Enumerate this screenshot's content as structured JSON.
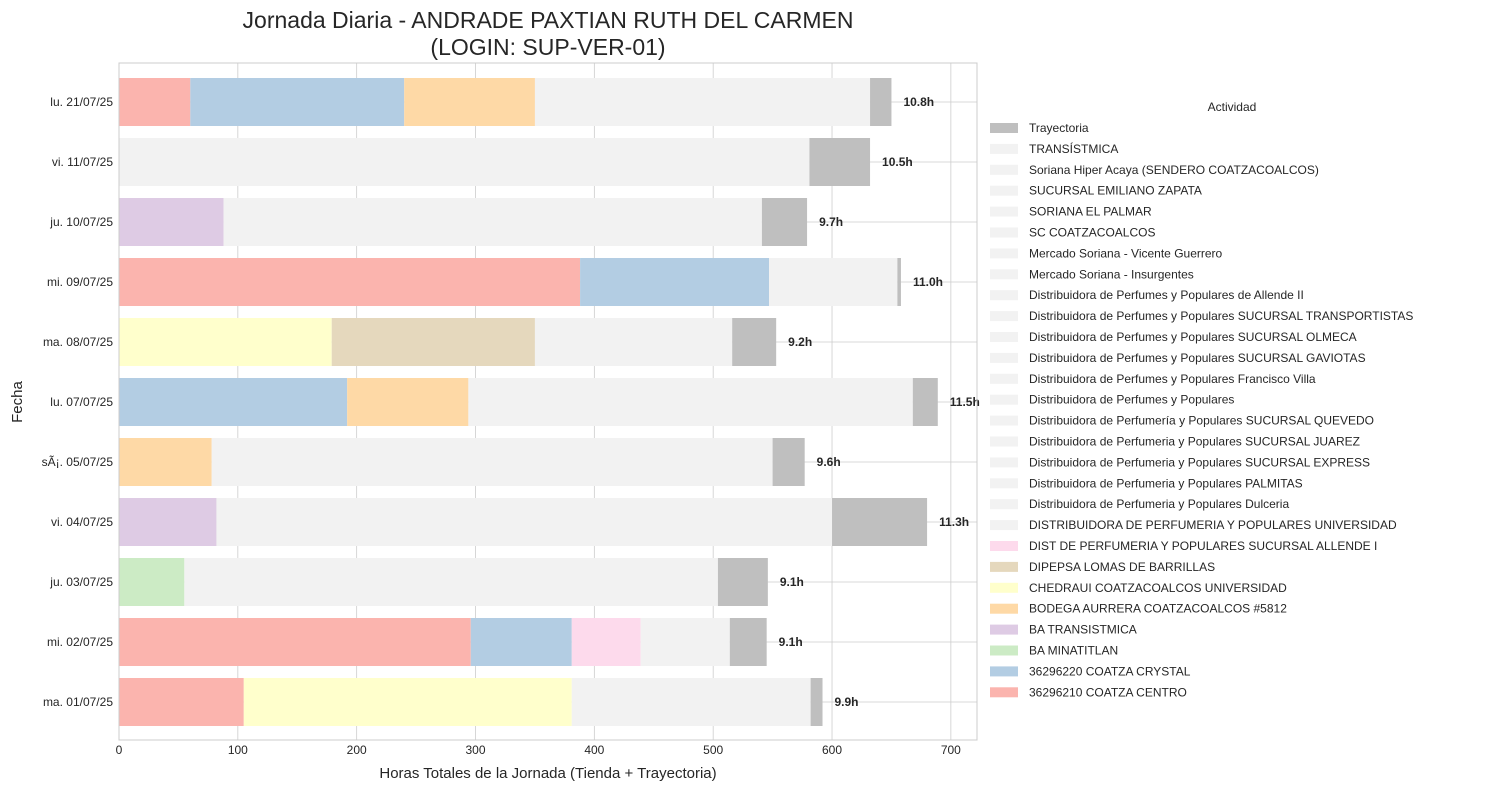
{
  "chart_data": {
    "type": "bar",
    "orientation": "horizontal",
    "stacked": true,
    "title_line1": "Jornada Diaria - ANDRADE PAXTIAN RUTH DEL CARMEN",
    "title_line2": "(LOGIN: SUP-VER-01)",
    "xlabel": "Horas Totales de la Jornada (Tienda + Trayectoria)",
    "ylabel": "Fecha",
    "xlim": [
      0,
      722
    ],
    "xticks": [
      0,
      100,
      200,
      300,
      400,
      500,
      600,
      700
    ],
    "grid": true,
    "legend_title": "Actividad",
    "legend_placement": "right",
    "categories": [
      "lu. 21/07/25",
      "vi. 11/07/25",
      "ju. 10/07/25",
      "mi. 09/07/25",
      "ma. 08/07/25",
      "lu. 07/07/25",
      "sÃ¡. 05/07/25",
      "vi. 04/07/25",
      "ju. 03/07/25",
      "mi. 02/07/25",
      "ma. 01/07/25"
    ],
    "total_labels": [
      "10.8h",
      "10.5h",
      "9.7h",
      "11.0h",
      "9.2h",
      "11.5h",
      "9.6h",
      "11.3h",
      "9.1h",
      "9.1h",
      "9.9h"
    ],
    "legend_items": [
      {
        "name": "Trayectoria",
        "color": "#bfbfbf"
      },
      {
        "name": "TRANSÍSTMICA",
        "color": "#f2f2f2"
      },
      {
        "name": "Soriana Hiper Acaya (SENDERO COATZACOALCOS)",
        "color": "#f2f2f2"
      },
      {
        "name": "SUCURSAL EMILIANO ZAPATA",
        "color": "#f2f2f2"
      },
      {
        "name": "SORIANA EL PALMAR",
        "color": "#f2f2f2"
      },
      {
        "name": "SC COATZACOALCOS",
        "color": "#f2f2f2"
      },
      {
        "name": "Mercado Soriana - Vicente Guerrero",
        "color": "#f2f2f2"
      },
      {
        "name": "Mercado Soriana - Insurgentes",
        "color": "#f2f2f2"
      },
      {
        "name": "Distribuidora de Perfumes y Populares de Allende II",
        "color": "#f2f2f2"
      },
      {
        "name": "Distribuidora de Perfumes y Populares SUCURSAL TRANSPORTISTAS",
        "color": "#f2f2f2"
      },
      {
        "name": "Distribuidora de Perfumes y Populares SUCURSAL OLMECA",
        "color": "#f2f2f2"
      },
      {
        "name": "Distribuidora de Perfumes y Populares SUCURSAL GAVIOTAS",
        "color": "#f2f2f2"
      },
      {
        "name": "Distribuidora de Perfumes y Populares Francisco Villa",
        "color": "#f2f2f2"
      },
      {
        "name": "Distribuidora de Perfumes y Populares",
        "color": "#f2f2f2"
      },
      {
        "name": "Distribuidora de Perfumería y Populares SUCURSAL QUEVEDO",
        "color": "#f2f2f2"
      },
      {
        "name": "Distribuidora de Perfumeria y Populares SUCURSAL JUAREZ",
        "color": "#f2f2f2"
      },
      {
        "name": "Distribuidora de Perfumeria y Populares SUCURSAL EXPRESS",
        "color": "#f2f2f2"
      },
      {
        "name": "Distribuidora de Perfumeria y Populares PALMITAS",
        "color": "#f2f2f2"
      },
      {
        "name": "Distribuidora de Perfumeria y Populares Dulceria",
        "color": "#f2f2f2"
      },
      {
        "name": "DISTRIBUIDORA DE PERFUMERIA Y POPULARES UNIVERSIDAD",
        "color": "#f2f2f2"
      },
      {
        "name": "DIST DE PERFUMERIA Y POPULARES SUCURSAL ALLENDE I",
        "color": "#fddaec"
      },
      {
        "name": "DIPEPSA LOMAS DE BARRILLAS",
        "color": "#e5d8bd"
      },
      {
        "name": "CHEDRAUI COATZACOALCOS UNIVERSIDAD",
        "color": "#ffffcc"
      },
      {
        "name": "BODEGA AURRERA COATZACOALCOS #5812",
        "color": "#fed9a6"
      },
      {
        "name": "BA TRANSISTMICA",
        "color": "#decbe4"
      },
      {
        "name": "BA MINATITLAN",
        "color": "#ccebc5"
      },
      {
        "name": "36296220 COATZA CRYSTAL",
        "color": "#b3cde3"
      },
      {
        "name": "36296210 COATZA CENTRO",
        "color": "#fbb4ae"
      }
    ],
    "bars": [
      {
        "date": "lu. 21/07/25",
        "segments": [
          {
            "activity": "36296210 COATZA CENTRO",
            "value": 60
          },
          {
            "activity": "36296220 COATZA CRYSTAL",
            "value": 180
          },
          {
            "activity": "BODEGA AURRERA COATZACOALCOS #5812",
            "value": 110
          },
          {
            "activity": "Distribuidora de Perfumes y Populares",
            "value": 282
          },
          {
            "activity": "Trayectoria",
            "value": 18
          }
        ]
      },
      {
        "date": "vi. 11/07/25",
        "segments": [
          {
            "activity": "Distribuidora de Perfumes y Populares",
            "value": 581
          },
          {
            "activity": "Trayectoria",
            "value": 51
          }
        ]
      },
      {
        "date": "ju. 10/07/25",
        "segments": [
          {
            "activity": "BA TRANSISTMICA",
            "value": 88
          },
          {
            "activity": "Distribuidora de Perfumes y Populares",
            "value": 453
          },
          {
            "activity": "Trayectoria",
            "value": 38
          }
        ]
      },
      {
        "date": "mi. 09/07/25",
        "segments": [
          {
            "activity": "36296210 COATZA CENTRO",
            "value": 388
          },
          {
            "activity": "36296220 COATZA CRYSTAL",
            "value": 159
          },
          {
            "activity": "Distribuidora de Perfumes y Populares",
            "value": 108
          },
          {
            "activity": "Trayectoria",
            "value": 3
          }
        ]
      },
      {
        "date": "ma. 08/07/25",
        "segments": [
          {
            "activity": "CHEDRAUI COATZACOALCOS UNIVERSIDAD",
            "value": 179
          },
          {
            "activity": "DIPEPSA LOMAS DE BARRILLAS",
            "value": 171
          },
          {
            "activity": "Distribuidora de Perfumes y Populares",
            "value": 166
          },
          {
            "activity": "Trayectoria",
            "value": 37
          }
        ]
      },
      {
        "date": "lu. 07/07/25",
        "segments": [
          {
            "activity": "36296220 COATZA CRYSTAL",
            "value": 192
          },
          {
            "activity": "BODEGA AURRERA COATZACOALCOS #5812",
            "value": 102
          },
          {
            "activity": "Distribuidora de Perfumes y Populares",
            "value": 374
          },
          {
            "activity": "Trayectoria",
            "value": 21
          }
        ]
      },
      {
        "date": "sÃ¡. 05/07/25",
        "segments": [
          {
            "activity": "BODEGA AURRERA COATZACOALCOS #5812",
            "value": 78
          },
          {
            "activity": "Distribuidora de Perfumes y Populares",
            "value": 472
          },
          {
            "activity": "Trayectoria",
            "value": 27
          }
        ]
      },
      {
        "date": "vi. 04/07/25",
        "segments": [
          {
            "activity": "BA TRANSISTMICA",
            "value": 82
          },
          {
            "activity": "Distribuidora de Perfumes y Populares",
            "value": 518
          },
          {
            "activity": "Trayectoria",
            "value": 80
          }
        ]
      },
      {
        "date": "ju. 03/07/25",
        "segments": [
          {
            "activity": "BA MINATITLAN",
            "value": 55
          },
          {
            "activity": "Distribuidora de Perfumes y Populares",
            "value": 449
          },
          {
            "activity": "Trayectoria",
            "value": 42
          }
        ]
      },
      {
        "date": "mi. 02/07/25",
        "segments": [
          {
            "activity": "36296210 COATZA CENTRO",
            "value": 296
          },
          {
            "activity": "36296220 COATZA CRYSTAL",
            "value": 85
          },
          {
            "activity": "DIST DE PERFUMERIA Y POPULARES SUCURSAL ALLENDE I",
            "value": 58
          },
          {
            "activity": "Distribuidora de Perfumes y Populares",
            "value": 75
          },
          {
            "activity": "Trayectoria",
            "value": 31
          }
        ]
      },
      {
        "date": "ma. 01/07/25",
        "segments": [
          {
            "activity": "36296210 COATZA CENTRO",
            "value": 105
          },
          {
            "activity": "CHEDRAUI COATZACOALCOS UNIVERSIDAD",
            "value": 276
          },
          {
            "activity": "Distribuidora de Perfumes y Populares",
            "value": 201
          },
          {
            "activity": "Trayectoria",
            "value": 10
          }
        ]
      }
    ]
  }
}
